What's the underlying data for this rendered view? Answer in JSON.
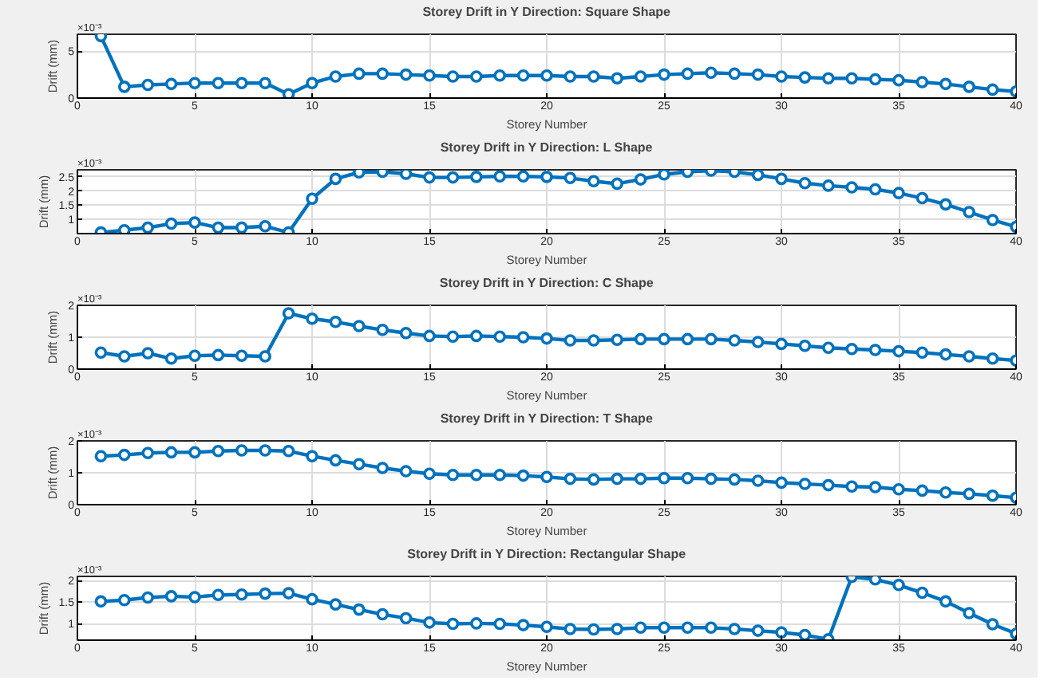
{
  "chart_data": [
    {
      "type": "line",
      "title": "Storey Drift in Y Direction: Square Shape",
      "xlabel": "Storey Number",
      "ylabel": "Drift (mm)",
      "annotations": [
        "×10⁻³"
      ],
      "marker": "circle",
      "line_style": "solid",
      "grid": true,
      "xlim": [
        0,
        40
      ],
      "xticks": [
        0,
        5,
        10,
        15,
        20,
        25,
        30,
        35,
        40
      ],
      "ylim": [
        0,
        6.8
      ],
      "yticks": [
        0,
        5
      ],
      "x": [
        1,
        2,
        3,
        4,
        5,
        6,
        7,
        8,
        9,
        10,
        11,
        12,
        13,
        14,
        15,
        16,
        17,
        18,
        19,
        20,
        21,
        22,
        23,
        24,
        25,
        26,
        27,
        28,
        29,
        30,
        31,
        32,
        33,
        34,
        35,
        36,
        37,
        38,
        39,
        40
      ],
      "series": [
        {
          "color": "#0072bd",
          "values": [
            6.6,
            1.2,
            1.4,
            1.5,
            1.6,
            1.6,
            1.6,
            1.6,
            0.4,
            1.6,
            2.3,
            2.6,
            2.6,
            2.5,
            2.4,
            2.3,
            2.3,
            2.4,
            2.4,
            2.4,
            2.3,
            2.3,
            2.1,
            2.3,
            2.5,
            2.6,
            2.7,
            2.6,
            2.5,
            2.3,
            2.2,
            2.1,
            2.1,
            2.0,
            1.9,
            1.7,
            1.5,
            1.2,
            0.9,
            0.7
          ]
        }
      ]
    },
    {
      "type": "line",
      "title": "Storey Drift in Y Direction: L Shape",
      "xlabel": "Storey Number",
      "ylabel": "Drift (mm)",
      "annotations": [
        "×10⁻³"
      ],
      "marker": "circle",
      "line_style": "solid",
      "grid": true,
      "xlim": [
        0,
        40
      ],
      "xticks": [
        0,
        5,
        10,
        15,
        20,
        25,
        30,
        35,
        40
      ],
      "ylim": [
        0.5,
        2.75
      ],
      "yticks": [
        1,
        1.5,
        2,
        2.5
      ],
      "x": [
        1,
        2,
        3,
        4,
        5,
        6,
        7,
        8,
        9,
        10,
        11,
        12,
        13,
        14,
        15,
        16,
        17,
        18,
        19,
        20,
        21,
        22,
        23,
        24,
        25,
        26,
        27,
        28,
        29,
        30,
        31,
        32,
        33,
        34,
        35,
        36,
        37,
        38,
        39,
        40
      ],
      "series": [
        {
          "color": "#0072bd",
          "values": [
            0.54,
            0.62,
            0.71,
            0.85,
            0.89,
            0.71,
            0.71,
            0.76,
            0.54,
            1.73,
            2.43,
            2.66,
            2.68,
            2.61,
            2.48,
            2.48,
            2.5,
            2.52,
            2.52,
            2.5,
            2.46,
            2.35,
            2.26,
            2.41,
            2.59,
            2.68,
            2.72,
            2.68,
            2.57,
            2.43,
            2.28,
            2.19,
            2.13,
            2.06,
            1.93,
            1.75,
            1.53,
            1.26,
            0.98,
            0.74
          ]
        }
      ]
    },
    {
      "type": "line",
      "title": "Storey Drift in Y Direction: C Shape",
      "xlabel": "Storey Number",
      "ylabel": "Drift (mm)",
      "annotations": [
        "×10⁻³"
      ],
      "marker": "circle",
      "line_style": "solid",
      "grid": true,
      "xlim": [
        0,
        40
      ],
      "xticks": [
        0,
        5,
        10,
        15,
        20,
        25,
        30,
        35,
        40
      ],
      "ylim": [
        0,
        2
      ],
      "yticks": [
        0,
        1,
        2
      ],
      "x": [
        1,
        2,
        3,
        4,
        5,
        6,
        7,
        8,
        9,
        10,
        11,
        12,
        13,
        14,
        15,
        16,
        17,
        18,
        19,
        20,
        21,
        22,
        23,
        24,
        25,
        26,
        27,
        28,
        29,
        30,
        31,
        32,
        33,
        34,
        35,
        36,
        37,
        38,
        39,
        40
      ],
      "series": [
        {
          "color": "#0072bd",
          "values": [
            0.52,
            0.4,
            0.5,
            0.33,
            0.42,
            0.44,
            0.42,
            0.4,
            1.75,
            1.58,
            1.48,
            1.35,
            1.23,
            1.13,
            1.04,
            1.02,
            1.04,
            1.02,
            1.0,
            0.96,
            0.9,
            0.9,
            0.92,
            0.94,
            0.94,
            0.94,
            0.94,
            0.9,
            0.85,
            0.79,
            0.73,
            0.67,
            0.63,
            0.6,
            0.56,
            0.52,
            0.46,
            0.4,
            0.33,
            0.27
          ]
        }
      ]
    },
    {
      "type": "line",
      "title": "Storey Drift in Y Direction: T Shape",
      "xlabel": "Storey Number",
      "ylabel": "Drift (mm)",
      "annotations": [
        "×10⁻³"
      ],
      "marker": "circle",
      "line_style": "solid",
      "grid": true,
      "xlim": [
        0,
        40
      ],
      "xticks": [
        0,
        5,
        10,
        15,
        20,
        25,
        30,
        35,
        40
      ],
      "ylim": [
        0,
        2
      ],
      "yticks": [
        0,
        1,
        2
      ],
      "x": [
        1,
        2,
        3,
        4,
        5,
        6,
        7,
        8,
        9,
        10,
        11,
        12,
        13,
        14,
        15,
        16,
        17,
        18,
        19,
        20,
        21,
        22,
        23,
        24,
        25,
        26,
        27,
        28,
        29,
        30,
        31,
        32,
        33,
        34,
        35,
        36,
        37,
        38,
        39,
        40
      ],
      "series": [
        {
          "color": "#0072bd",
          "values": [
            1.52,
            1.56,
            1.62,
            1.64,
            1.64,
            1.68,
            1.7,
            1.7,
            1.68,
            1.52,
            1.39,
            1.27,
            1.15,
            1.05,
            0.97,
            0.93,
            0.93,
            0.93,
            0.91,
            0.87,
            0.81,
            0.79,
            0.81,
            0.81,
            0.83,
            0.83,
            0.81,
            0.79,
            0.75,
            0.69,
            0.65,
            0.61,
            0.57,
            0.55,
            0.48,
            0.44,
            0.38,
            0.34,
            0.28,
            0.22
          ]
        }
      ]
    },
    {
      "type": "line",
      "title": "Storey Drift in Y Direction: Rectangular Shape",
      "xlabel": "Storey Number",
      "ylabel": "Drift (mm)",
      "annotations": [
        "×10⁻³"
      ],
      "marker": "circle",
      "line_style": "solid",
      "grid": true,
      "xlim": [
        0,
        40
      ],
      "xticks": [
        0,
        5,
        10,
        15,
        20,
        25,
        30,
        35,
        40
      ],
      "ylim": [
        0.62,
        2.1
      ],
      "yticks": [
        1,
        1.5,
        2
      ],
      "x": [
        1,
        2,
        3,
        4,
        5,
        6,
        7,
        8,
        9,
        10,
        11,
        12,
        13,
        14,
        15,
        16,
        17,
        18,
        19,
        20,
        21,
        22,
        23,
        24,
        25,
        26,
        27,
        28,
        29,
        30,
        31,
        32,
        33,
        34,
        35,
        36,
        37,
        38,
        39,
        40
      ],
      "series": [
        {
          "color": "#0072bd",
          "values": [
            1.52,
            1.55,
            1.61,
            1.64,
            1.62,
            1.67,
            1.68,
            1.7,
            1.71,
            1.57,
            1.45,
            1.33,
            1.22,
            1.13,
            1.03,
            1.0,
            1.01,
            1.0,
            0.97,
            0.93,
            0.88,
            0.87,
            0.88,
            0.91,
            0.91,
            0.91,
            0.91,
            0.88,
            0.84,
            0.8,
            0.74,
            0.64,
            2.09,
            2.03,
            1.9,
            1.72,
            1.52,
            1.25,
            0.99,
            0.77
          ]
        }
      ]
    }
  ]
}
